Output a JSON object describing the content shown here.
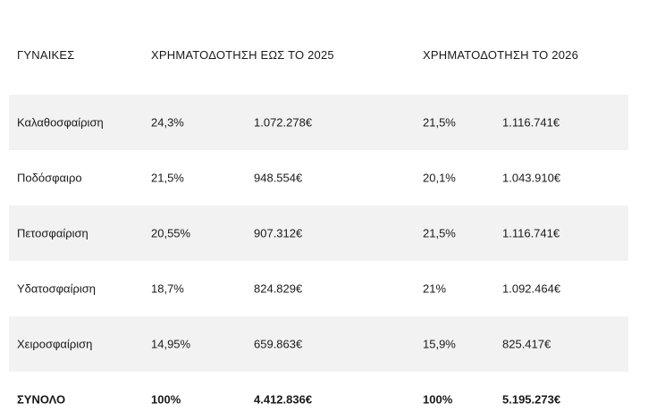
{
  "header": {
    "col1": "ΓΥΝΑΙΚΕΣ",
    "col2": "ΧΡΗΜΑΤΟΔΟΤΗΣΗ ΕΩΣ ΤΟ 2025",
    "col3": "ΧΡΗΜΑΤΟΔΟΤΗΣΗ ΤΟ 2026"
  },
  "rows": [
    {
      "sport": "Καλαθοσφαίριση",
      "pct2025": "24,3%",
      "amt2025": "1.072.278€",
      "pct2026": "21,5%",
      "amt2026": "1.116.741€"
    },
    {
      "sport": "Ποδόσφαιρο",
      "pct2025": "21,5%",
      "amt2025": "948.554€",
      "pct2026": "20,1%",
      "amt2026": "1.043.910€"
    },
    {
      "sport": "Πετοσφαίριση",
      "pct2025": "20,55%",
      "amt2025": "907.312€",
      "pct2026": "21,5%",
      "amt2026": "1.116.741€"
    },
    {
      "sport": "Υδατοσφαίριση",
      "pct2025": "18,7%",
      "amt2025": "824.829€",
      "pct2026": "21%",
      "amt2026": "1.092.464€"
    },
    {
      "sport": "Χειροσφαίριση",
      "pct2025": "14,95%",
      "amt2025": "659.863€",
      "pct2026": "15,9%",
      "amt2026": "825.417€"
    }
  ],
  "total": {
    "label": "ΣΥΝΟΛΟ",
    "pct2025": "100%",
    "amt2025": "4.412.836€",
    "pct2026": "100%",
    "amt2026": "5.195.273€"
  }
}
